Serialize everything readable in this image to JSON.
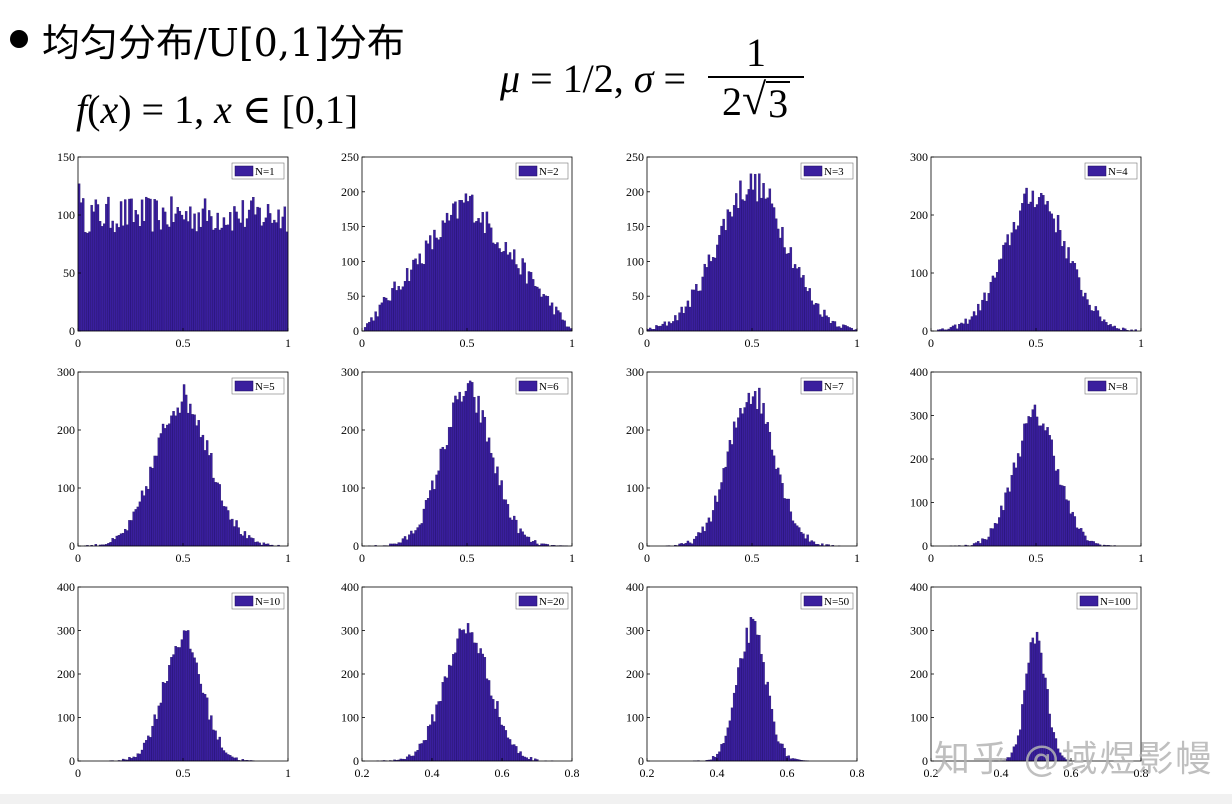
{
  "slide": {
    "bullet_text": "均匀分布/U[0,1]分布",
    "formula_f": {
      "fx": "f",
      "x1": "x",
      "eq": " = 1, ",
      "x2": "x",
      "in": " ∈ [0,1]"
    },
    "formula_mu": {
      "mu": "μ",
      "mid": " = 1/2, ",
      "sigma": "σ",
      "eq": " = ",
      "num": "1",
      "den_coef": "2",
      "den_sqrt": "3"
    },
    "watermark": "知乎 @域煜影幔"
  },
  "colors": {
    "bar_fill": "#3a1f9e",
    "bar_edge": "#1c0d5a"
  },
  "chart_data": [
    {
      "type": "bar",
      "legend": "N=1",
      "legend_placement": "top-right",
      "xlim": [
        0,
        1
      ],
      "ylim": [
        0,
        150
      ],
      "xticks": [
        "0",
        "0.5",
        "1"
      ],
      "yticks": [
        "0",
        "50",
        "100",
        "150"
      ],
      "mean": 0.5,
      "sd": 0.2887,
      "peak": 100,
      "uniform": true
    },
    {
      "type": "bar",
      "legend": "N=2",
      "legend_placement": "top-right",
      "xlim": [
        0,
        1
      ],
      "ylim": [
        0,
        250
      ],
      "xticks": [
        "0",
        "0.5",
        "1"
      ],
      "yticks": [
        "0",
        "50",
        "100",
        "150",
        "200",
        "250"
      ],
      "mean": 0.5,
      "sd": 0.2041,
      "peak": 190,
      "triangle": true
    },
    {
      "type": "bar",
      "legend": "N=3",
      "legend_placement": "top-right",
      "xlim": [
        0,
        1
      ],
      "ylim": [
        0,
        250
      ],
      "xticks": [
        "0",
        "0.5",
        "1"
      ],
      "yticks": [
        "0",
        "50",
        "100",
        "150",
        "200",
        "250"
      ],
      "mean": 0.5,
      "sd": 0.1667,
      "peak": 210
    },
    {
      "type": "bar",
      "legend": "N=4",
      "legend_placement": "top-right",
      "xlim": [
        0,
        1
      ],
      "ylim": [
        0,
        300
      ],
      "xticks": [
        "0",
        "0.5",
        "1"
      ],
      "yticks": [
        "0",
        "100",
        "200",
        "300"
      ],
      "mean": 0.5,
      "sd": 0.1443,
      "peak": 235
    },
    {
      "type": "bar",
      "legend": "N=5",
      "legend_placement": "top-right",
      "xlim": [
        0,
        1
      ],
      "ylim": [
        0,
        300
      ],
      "xticks": [
        "0",
        "0.5",
        "1"
      ],
      "yticks": [
        "0",
        "100",
        "200",
        "300"
      ],
      "mean": 0.5,
      "sd": 0.1291,
      "peak": 255
    },
    {
      "type": "bar",
      "legend": "N=6",
      "legend_placement": "top-right",
      "xlim": [
        0,
        1
      ],
      "ylim": [
        0,
        300
      ],
      "xticks": [
        "0",
        "0.5",
        "1"
      ],
      "yticks": [
        "0",
        "100",
        "200",
        "300"
      ],
      "mean": 0.5,
      "sd": 0.1179,
      "peak": 265
    },
    {
      "type": "bar",
      "legend": "N=7",
      "legend_placement": "top-right",
      "xlim": [
        0,
        1
      ],
      "ylim": [
        0,
        300
      ],
      "xticks": [
        "0",
        "0.5",
        "1"
      ],
      "yticks": [
        "0",
        "100",
        "200",
        "300"
      ],
      "mean": 0.5,
      "sd": 0.1091,
      "peak": 265
    },
    {
      "type": "bar",
      "legend": "N=8",
      "legend_placement": "top-right",
      "xlim": [
        0,
        1
      ],
      "ylim": [
        0,
        400
      ],
      "xticks": [
        "0",
        "0.5",
        "1"
      ],
      "yticks": [
        "0",
        "100",
        "200",
        "300",
        "400"
      ],
      "mean": 0.5,
      "sd": 0.1021,
      "peak": 300
    },
    {
      "type": "bar",
      "legend": "N=10",
      "legend_placement": "top-right",
      "xlim": [
        0,
        1
      ],
      "ylim": [
        0,
        400
      ],
      "xticks": [
        "0",
        "0.5",
        "1"
      ],
      "yticks": [
        "0",
        "100",
        "200",
        "300",
        "400"
      ],
      "mean": 0.5,
      "sd": 0.0913,
      "peak": 285
    },
    {
      "type": "bar",
      "legend": "N=20",
      "legend_placement": "top-right",
      "xlim": [
        0.2,
        0.8
      ],
      "ylim": [
        0,
        400
      ],
      "xticks": [
        "0.2",
        "0.4",
        "0.6",
        "0.8"
      ],
      "yticks": [
        "0",
        "100",
        "200",
        "300",
        "400"
      ],
      "mean": 0.5,
      "sd": 0.0645,
      "peak": 300
    },
    {
      "type": "bar",
      "legend": "N=50",
      "legend_placement": "top-right",
      "xlim": [
        0.2,
        0.8
      ],
      "ylim": [
        0,
        400
      ],
      "xticks": [
        "0.2",
        "0.4",
        "0.6",
        "0.8"
      ],
      "yticks": [
        "0",
        "100",
        "200",
        "300",
        "400"
      ],
      "mean": 0.5,
      "sd": 0.0408,
      "peak": 305
    },
    {
      "type": "bar",
      "legend": "N=100",
      "legend_placement": "top-right",
      "xlim": [
        0.2,
        0.8
      ],
      "ylim": [
        0,
        400
      ],
      "xticks": [
        "0.2",
        "0.4",
        "0.6",
        "0.8"
      ],
      "yticks": [
        "0",
        "100",
        "200",
        "300",
        "400"
      ],
      "mean": 0.5,
      "sd": 0.0289,
      "peak": 290
    }
  ]
}
